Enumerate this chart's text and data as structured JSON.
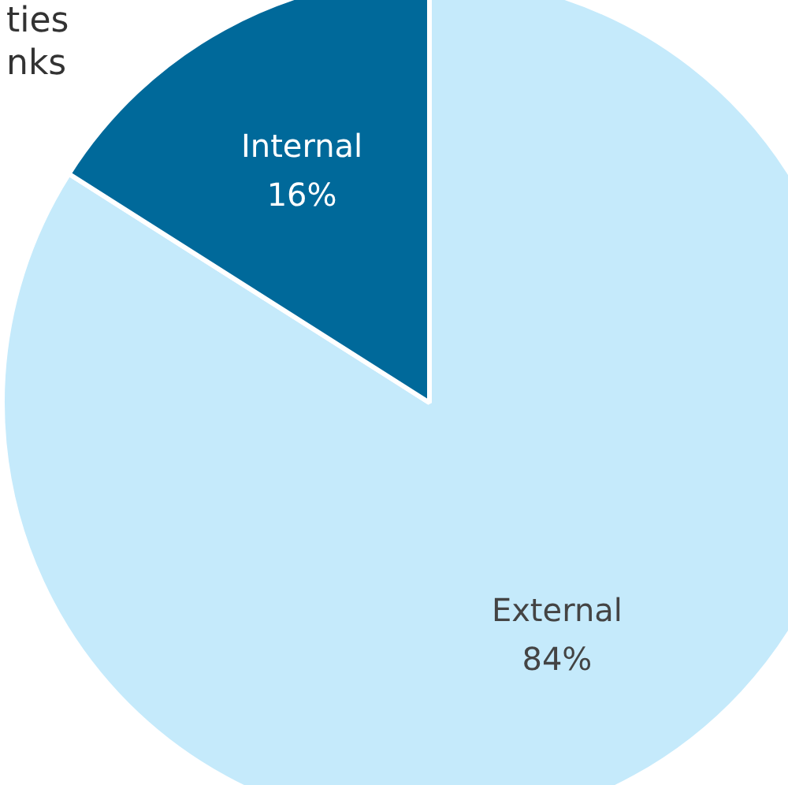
{
  "chart_data": {
    "type": "pie",
    "categories": [
      "External",
      "Internal"
    ],
    "values": [
      84,
      16
    ],
    "colors": [
      "#c5eafb",
      "#00699a"
    ],
    "value_labels": [
      "84%",
      "16%"
    ],
    "annotations": [
      "ties",
      "nks"
    ]
  }
}
